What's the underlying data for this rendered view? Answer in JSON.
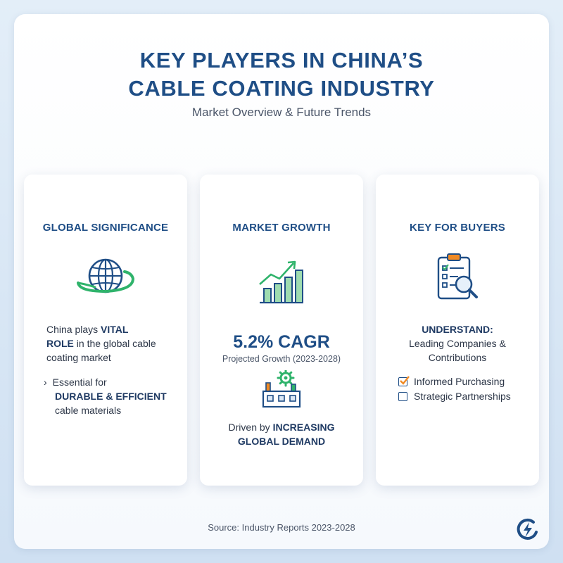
{
  "header": {
    "title_line1": "KEY PLAYERS IN CHINA’S",
    "title_line2": "CABLE COATING INDUSTRY",
    "subtitle": "Market Overview & Future Trends"
  },
  "cards": {
    "global": {
      "heading": "GLOBAL SIGNIFICANCE",
      "icon": "globe-icon",
      "line1_plain": "China plays ",
      "line1_bold": "VITAL",
      "line2_bold": "ROLE",
      "line2_plain": " in the global cable",
      "line3_plain": "coating market",
      "bullet_marker": "›",
      "bullet_line1_plain": "Essential for",
      "bullet_line2_bold": "DURABLE & EFFICIENT",
      "bullet_line3_plain": "cable materials"
    },
    "growth": {
      "heading": "MARKET GROWTH",
      "icon": "growth-chart-icon",
      "cagr": "5.2% CAGR",
      "cagr_sub": "Projected Growth (2023-2028)",
      "factory_icon": "factory-gear-icon",
      "driver_plain": "Driven by ",
      "driver_bold1": "INCREASING",
      "driver_bold2": "GLOBAL DEMAND"
    },
    "buyers": {
      "heading": "KEY FOR BUYERS",
      "icon": "clipboard-search-icon",
      "understand": "UNDERSTAND:",
      "understand_line1": "Leading Companies &",
      "understand_line2": "Contributions",
      "checklist": [
        {
          "label": "Informed Purchasing",
          "checked": true
        },
        {
          "label": "Strategic Partnerships",
          "checked": false
        }
      ]
    }
  },
  "footer": {
    "source": "Source: Industry Reports 2023-2028",
    "logo_icon": "lightning-logo-icon"
  },
  "colors": {
    "primary": "#1f4e86",
    "accent_orange": "#f08a24",
    "accent_green": "#2fb36b",
    "bar_green": "#9fdcb0"
  }
}
